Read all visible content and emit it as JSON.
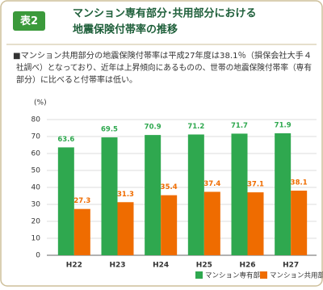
{
  "chart_data": {
    "type": "bar",
    "badge": "表2",
    "title": [
      "マンション専有部分･共用部分における",
      "地震保険付帯率の推移"
    ],
    "note": [
      "■マンション共用部分の地震保険付帯率は平成27年度は38.1％（損保会社大手４",
      "社調べ）となっており、近年は上昇傾向にあるものの、世帯の地震保険付帯率（専有",
      "部分）に比べると付帯率は低い。"
    ],
    "y_label": "(%)",
    "categories": [
      "H22",
      "H23",
      "H24",
      "H25",
      "H26",
      "H27"
    ],
    "series": [
      {
        "name": "マンション専有部分",
        "color": "#2fa84f",
        "values": [
          63.6,
          69.5,
          70.9,
          71.2,
          71.7,
          71.9
        ]
      },
      {
        "name": "マンション共用部分",
        "color": "#ef6c00",
        "values": [
          27.3,
          31.3,
          35.4,
          37.4,
          37.1,
          38.1
        ]
      }
    ],
    "ylim": [
      0,
      80
    ],
    "yticks": [
      0,
      10,
      20,
      30,
      40,
      50,
      60,
      70,
      80
    ],
    "grid": true,
    "legend": "bottom-right"
  }
}
